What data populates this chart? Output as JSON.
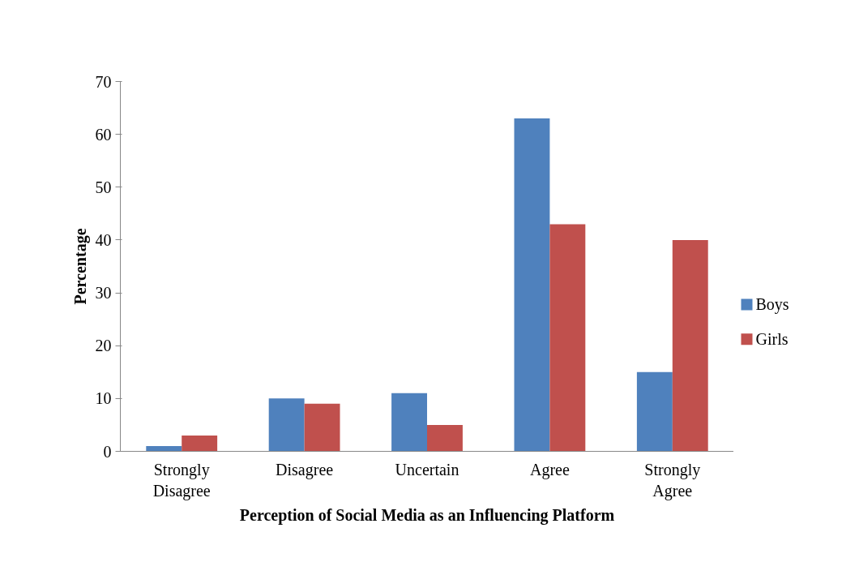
{
  "chart_data": {
    "type": "bar",
    "xlabel": "Perception of Social Media as an Influencing Platform",
    "ylabel": "Percentage",
    "categories": [
      "Strongly Disagree",
      "Disagree",
      "Uncertain",
      "Agree",
      "Strongly Agree"
    ],
    "series": [
      {
        "name": "Boys",
        "color": "#4f81bd",
        "values": [
          1,
          10,
          11,
          63,
          15
        ]
      },
      {
        "name": "Girls",
        "color": "#c0504d",
        "values": [
          3,
          9,
          5,
          43,
          40
        ]
      }
    ],
    "ylim": [
      0,
      70
    ],
    "yticks": [
      0,
      10,
      20,
      30,
      40,
      50,
      60,
      70
    ],
    "grid": false,
    "legend": "right"
  }
}
